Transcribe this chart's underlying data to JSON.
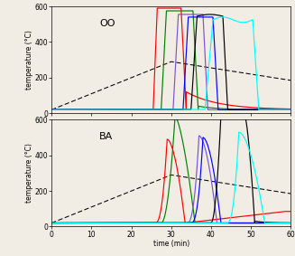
{
  "title_top": "OO",
  "title_bot": "BA",
  "xlabel": "time (min)",
  "ylabel": "temperature (°C)",
  "xlim": [
    0,
    60
  ],
  "ylim": [
    0,
    600
  ],
  "yticks": [
    0,
    200,
    400,
    600
  ],
  "xticks": [
    0,
    10,
    20,
    30,
    40,
    50,
    60
  ],
  "dashed_color": "black",
  "bg_color": "#f2ede4",
  "lw": 0.85
}
